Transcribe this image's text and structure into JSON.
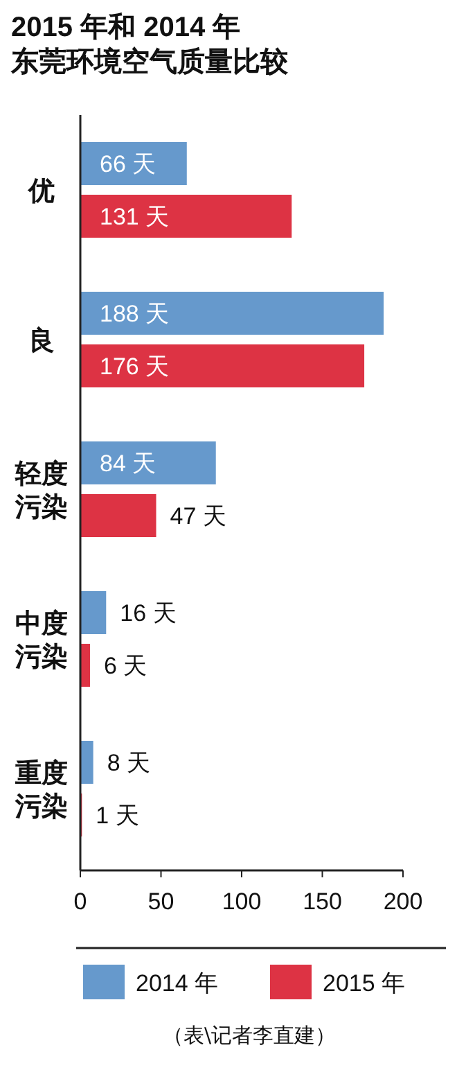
{
  "chart_data": {
    "type": "bar",
    "orientation": "horizontal",
    "title": "2015 年和 2014 年东莞环境空气质量比较",
    "categories": [
      "优",
      "良",
      "轻度污染",
      "中度污染",
      "重度污染"
    ],
    "series": [
      {
        "name": "2014 年",
        "color": "#6699cc",
        "values": [
          66,
          188,
          84,
          16,
          8
        ],
        "value_labels": [
          "66 天",
          "188 天",
          "84 天",
          "16 天",
          "8 天"
        ]
      },
      {
        "name": "2015 年",
        "color": "#dd3344",
        "values": [
          131,
          176,
          47,
          6,
          1
        ],
        "value_labels": [
          "131 天",
          "176 天",
          "47 天",
          "6 天",
          "1 天"
        ]
      }
    ],
    "xlim": [
      0,
      200
    ],
    "xticks": [
      0,
      50,
      100,
      150,
      200
    ],
    "grid": false,
    "legend": "bottom",
    "annotations": [
      "（表\\记者李直建）"
    ]
  }
}
